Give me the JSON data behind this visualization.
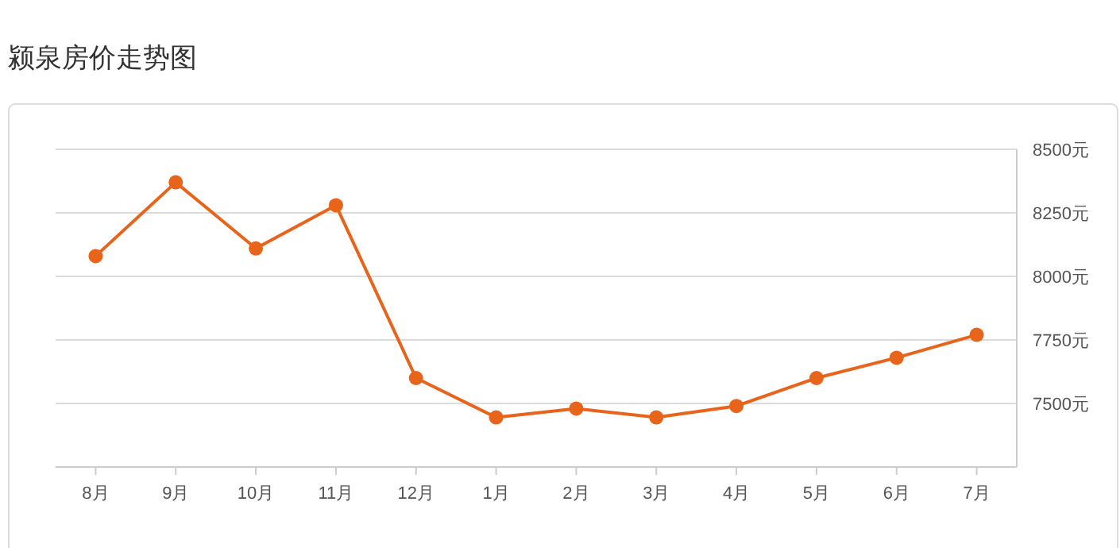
{
  "chart_data": {
    "type": "line",
    "title": "颍泉房价走势图",
    "categories": [
      "8月",
      "9月",
      "10月",
      "11月",
      "12月",
      "1月",
      "2月",
      "3月",
      "4月",
      "5月",
      "6月",
      "7月"
    ],
    "series": [
      {
        "color": "#e8641b",
        "values": [
          8080,
          8370,
          8110,
          8280,
          7600,
          7445,
          7480,
          7445,
          7490,
          7600,
          7680,
          7770
        ]
      }
    ],
    "ylim": [
      7250,
      8500
    ],
    "yticks": [
      {
        "value": 7500,
        "label": "7500元"
      },
      {
        "value": 7750,
        "label": "7750元"
      },
      {
        "value": 8000,
        "label": "8000元"
      },
      {
        "value": 8250,
        "label": "8250元"
      },
      {
        "value": 8500,
        "label": "8500元"
      }
    ],
    "grid": "y",
    "marker": "circle",
    "line_style": "solid"
  }
}
